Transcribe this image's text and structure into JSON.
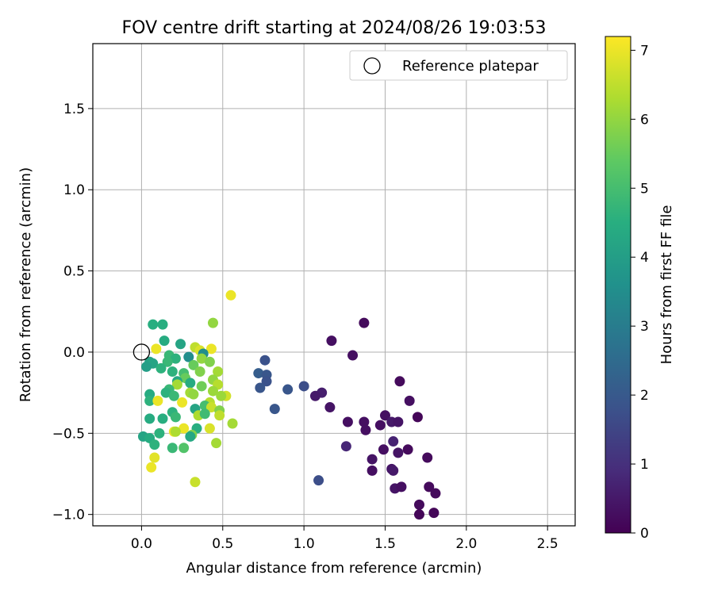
{
  "chart_data": {
    "type": "scatter",
    "title": "FOV centre drift starting at 2024/08/26 19:03:53",
    "xlabel": "Angular distance from reference (arcmin)",
    "ylabel": "Rotation from reference (arcmin)",
    "xlim": [
      -0.3,
      2.67
    ],
    "ylim": [
      -1.07,
      1.9
    ],
    "x_ticks": [
      0.0,
      0.5,
      1.0,
      1.5,
      2.0,
      2.5
    ],
    "x_tick_labels": [
      "0.0",
      "0.5",
      "1.0",
      "1.5",
      "2.0",
      "2.5"
    ],
    "y_ticks": [
      -1.0,
      -0.5,
      0.0,
      0.5,
      1.0,
      1.5
    ],
    "y_tick_labels": [
      "−1.0",
      "−0.5",
      "0.0",
      "0.5",
      "1.0",
      "1.5"
    ],
    "grid": true,
    "colormap": "viridis",
    "colorbar": {
      "label": "Hours from first FF file",
      "range": [
        0,
        7.2
      ],
      "ticks": [
        0,
        1,
        2,
        3,
        4,
        5,
        6,
        7
      ],
      "tick_labels": [
        "0",
        "1",
        "2",
        "3",
        "4",
        "5",
        "6",
        "7"
      ]
    },
    "legend": {
      "position": "top-right",
      "entries": [
        "Reference platepar"
      ]
    },
    "reference_point": {
      "x": 0.0,
      "y": 0.0,
      "label": "Reference platepar"
    },
    "points": [
      {
        "x": 1.37,
        "y": 0.18,
        "h": 0.2
      },
      {
        "x": 1.17,
        "y": 0.07,
        "h": 0.3
      },
      {
        "x": 1.3,
        "y": -0.02,
        "h": 0.3
      },
      {
        "x": 1.59,
        "y": -0.18,
        "h": 0.2
      },
      {
        "x": 1.11,
        "y": -0.25,
        "h": 0.6
      },
      {
        "x": 1.07,
        "y": -0.27,
        "h": 0.5
      },
      {
        "x": 1.65,
        "y": -0.3,
        "h": 0.3
      },
      {
        "x": 1.16,
        "y": -0.34,
        "h": 0.4
      },
      {
        "x": 1.5,
        "y": -0.39,
        "h": 0.3
      },
      {
        "x": 1.7,
        "y": -0.4,
        "h": 0.1
      },
      {
        "x": 1.27,
        "y": -0.43,
        "h": 0.3
      },
      {
        "x": 1.37,
        "y": -0.43,
        "h": 0.3
      },
      {
        "x": 1.54,
        "y": -0.43,
        "h": 0.5
      },
      {
        "x": 1.58,
        "y": -0.43,
        "h": 0.4
      },
      {
        "x": 1.47,
        "y": -0.45,
        "h": 0.3
      },
      {
        "x": 1.38,
        "y": -0.48,
        "h": 0.3
      },
      {
        "x": 1.55,
        "y": -0.55,
        "h": 0.7
      },
      {
        "x": 1.26,
        "y": -0.58,
        "h": 0.8
      },
      {
        "x": 1.49,
        "y": -0.6,
        "h": 0.3
      },
      {
        "x": 1.58,
        "y": -0.62,
        "h": 0.4
      },
      {
        "x": 1.64,
        "y": -0.6,
        "h": 0.2
      },
      {
        "x": 1.42,
        "y": -0.66,
        "h": 0.4
      },
      {
        "x": 1.76,
        "y": -0.65,
        "h": 0.2
      },
      {
        "x": 1.54,
        "y": -0.72,
        "h": 0.4
      },
      {
        "x": 1.55,
        "y": -0.73,
        "h": 0.5
      },
      {
        "x": 1.42,
        "y": -0.73,
        "h": 0.3
      },
      {
        "x": 1.56,
        "y": -0.84,
        "h": 0.4
      },
      {
        "x": 1.6,
        "y": -0.83,
        "h": 0.3
      },
      {
        "x": 1.77,
        "y": -0.83,
        "h": 0.2
      },
      {
        "x": 1.81,
        "y": -0.87,
        "h": 0.2
      },
      {
        "x": 1.71,
        "y": -0.94,
        "h": 0.2
      },
      {
        "x": 1.8,
        "y": -0.99,
        "h": 0.1
      },
      {
        "x": 1.71,
        "y": -1.0,
        "h": 0.1
      },
      {
        "x": 0.76,
        "y": -0.05,
        "h": 1.8
      },
      {
        "x": 0.72,
        "y": -0.13,
        "h": 2.1
      },
      {
        "x": 0.77,
        "y": -0.14,
        "h": 1.9
      },
      {
        "x": 0.77,
        "y": -0.18,
        "h": 1.8
      },
      {
        "x": 0.73,
        "y": -0.22,
        "h": 1.9
      },
      {
        "x": 0.9,
        "y": -0.23,
        "h": 1.9
      },
      {
        "x": 1.0,
        "y": -0.21,
        "h": 1.7
      },
      {
        "x": 0.82,
        "y": -0.35,
        "h": 1.9
      },
      {
        "x": 1.09,
        "y": -0.79,
        "h": 1.7
      },
      {
        "x": 0.55,
        "y": 0.35,
        "h": 7.0
      },
      {
        "x": 0.44,
        "y": 0.18,
        "h": 6.0
      },
      {
        "x": 0.07,
        "y": 0.17,
        "h": 4.5
      },
      {
        "x": 0.13,
        "y": 0.17,
        "h": 4.5
      },
      {
        "x": 0.14,
        "y": 0.07,
        "h": 4.4
      },
      {
        "x": 0.24,
        "y": 0.05,
        "h": 4.2
      },
      {
        "x": 0.33,
        "y": 0.03,
        "h": 6.5
      },
      {
        "x": 0.09,
        "y": 0.02,
        "h": 7.0
      },
      {
        "x": 0.43,
        "y": 0.02,
        "h": 7.0
      },
      {
        "x": 0.36,
        "y": 0.01,
        "h": 6.8
      },
      {
        "x": 0.38,
        "y": -0.01,
        "h": 3.5
      },
      {
        "x": 0.29,
        "y": -0.03,
        "h": 3.5
      },
      {
        "x": 0.17,
        "y": -0.02,
        "h": 4.8
      },
      {
        "x": 0.21,
        "y": -0.04,
        "h": 4.6
      },
      {
        "x": 0.37,
        "y": -0.04,
        "h": 6.0
      },
      {
        "x": 0.42,
        "y": -0.06,
        "h": 5.8
      },
      {
        "x": 0.05,
        "y": -0.06,
        "h": 4.1
      },
      {
        "x": 0.07,
        "y": -0.07,
        "h": 4.2
      },
      {
        "x": 0.16,
        "y": -0.06,
        "h": 4.8
      },
      {
        "x": 0.32,
        "y": -0.08,
        "h": 5.5
      },
      {
        "x": 0.03,
        "y": -0.09,
        "h": 4.0
      },
      {
        "x": 0.12,
        "y": -0.1,
        "h": 4.6
      },
      {
        "x": 0.47,
        "y": -0.12,
        "h": 6.2
      },
      {
        "x": 0.36,
        "y": -0.12,
        "h": 5.8
      },
      {
        "x": 0.19,
        "y": -0.12,
        "h": 4.6
      },
      {
        "x": 0.26,
        "y": -0.13,
        "h": 5.0
      },
      {
        "x": 0.27,
        "y": -0.16,
        "h": 5.5
      },
      {
        "x": 0.44,
        "y": -0.17,
        "h": 6.0
      },
      {
        "x": 0.22,
        "y": -0.18,
        "h": 4.3
      },
      {
        "x": 0.3,
        "y": -0.19,
        "h": 4.4
      },
      {
        "x": 0.47,
        "y": -0.2,
        "h": 6.4
      },
      {
        "x": 0.22,
        "y": -0.2,
        "h": 6.2
      },
      {
        "x": 0.17,
        "y": -0.23,
        "h": 4.8
      },
      {
        "x": 0.37,
        "y": -0.21,
        "h": 5.6
      },
      {
        "x": 0.44,
        "y": -0.24,
        "h": 6.1
      },
      {
        "x": 0.15,
        "y": -0.25,
        "h": 4.6
      },
      {
        "x": 0.05,
        "y": -0.26,
        "h": 4.4
      },
      {
        "x": 0.3,
        "y": -0.25,
        "h": 6.2
      },
      {
        "x": 0.32,
        "y": -0.26,
        "h": 6.0
      },
      {
        "x": 0.52,
        "y": -0.27,
        "h": 6.7
      },
      {
        "x": 0.2,
        "y": -0.27,
        "h": 4.8
      },
      {
        "x": 0.49,
        "y": -0.27,
        "h": 6.1
      },
      {
        "x": 0.05,
        "y": -0.3,
        "h": 4.6
      },
      {
        "x": 0.1,
        "y": -0.3,
        "h": 7.0
      },
      {
        "x": 0.25,
        "y": -0.31,
        "h": 7.0
      },
      {
        "x": 0.42,
        "y": -0.31,
        "h": 6.4
      },
      {
        "x": 0.39,
        "y": -0.33,
        "h": 5.0
      },
      {
        "x": 0.43,
        "y": -0.34,
        "h": 6.6
      },
      {
        "x": 0.33,
        "y": -0.35,
        "h": 4.2
      },
      {
        "x": 0.48,
        "y": -0.36,
        "h": 5.8
      },
      {
        "x": 0.19,
        "y": -0.37,
        "h": 4.6
      },
      {
        "x": 0.35,
        "y": -0.39,
        "h": 6.3
      },
      {
        "x": 0.39,
        "y": -0.38,
        "h": 4.9
      },
      {
        "x": 0.48,
        "y": -0.39,
        "h": 6.5
      },
      {
        "x": 0.21,
        "y": -0.4,
        "h": 4.8
      },
      {
        "x": 0.05,
        "y": -0.41,
        "h": 4.4
      },
      {
        "x": 0.13,
        "y": -0.41,
        "h": 4.5
      },
      {
        "x": 0.56,
        "y": -0.44,
        "h": 6.2
      },
      {
        "x": 0.34,
        "y": -0.47,
        "h": 4.5
      },
      {
        "x": 0.42,
        "y": -0.47,
        "h": 6.8
      },
      {
        "x": 0.26,
        "y": -0.47,
        "h": 7.0
      },
      {
        "x": 0.2,
        "y": -0.49,
        "h": 7.0
      },
      {
        "x": 0.11,
        "y": -0.5,
        "h": 4.6
      },
      {
        "x": 0.21,
        "y": -0.49,
        "h": 6.3
      },
      {
        "x": 0.31,
        "y": -0.51,
        "h": 5.8
      },
      {
        "x": 0.3,
        "y": -0.52,
        "h": 4.3
      },
      {
        "x": 0.01,
        "y": -0.52,
        "h": 4.2
      },
      {
        "x": 0.05,
        "y": -0.53,
        "h": 4.4
      },
      {
        "x": 0.46,
        "y": -0.56,
        "h": 6.2
      },
      {
        "x": 0.08,
        "y": -0.57,
        "h": 4.6
      },
      {
        "x": 0.19,
        "y": -0.59,
        "h": 4.8
      },
      {
        "x": 0.26,
        "y": -0.59,
        "h": 5.2
      },
      {
        "x": 0.08,
        "y": -0.65,
        "h": 6.9
      },
      {
        "x": 0.06,
        "y": -0.71,
        "h": 7.0
      },
      {
        "x": 0.33,
        "y": -0.8,
        "h": 6.6
      }
    ]
  }
}
